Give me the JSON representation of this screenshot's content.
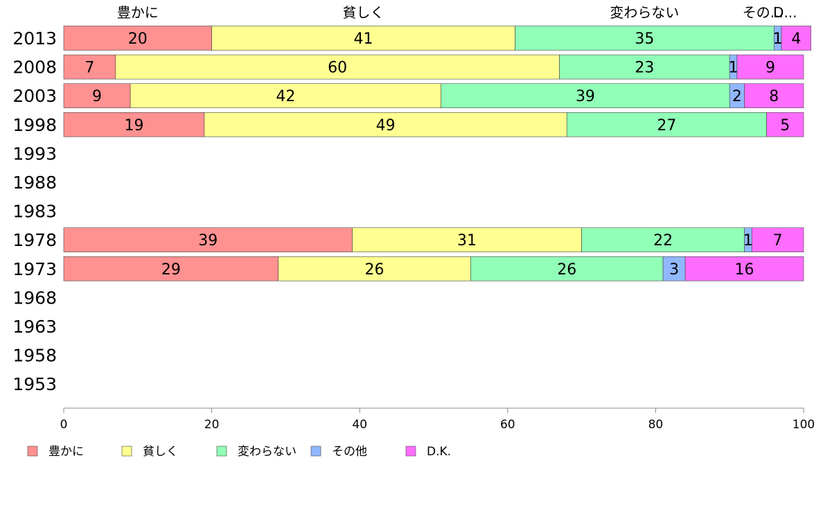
{
  "chart_data": {
    "type": "bar",
    "orientation": "horizontal",
    "stacked": true,
    "categories": [
      "2013",
      "2008",
      "2003",
      "1998",
      "1993",
      "1988",
      "1983",
      "1978",
      "1973",
      "1968",
      "1963",
      "1958",
      "1953"
    ],
    "series": [
      {
        "name": "豊かに",
        "color": "#ff9191",
        "values": [
          20,
          7,
          9,
          19,
          null,
          null,
          null,
          39,
          29,
          null,
          null,
          null,
          null
        ]
      },
      {
        "name": "貧しく",
        "color": "#ffff91",
        "values": [
          41,
          60,
          42,
          49,
          null,
          null,
          null,
          31,
          26,
          null,
          null,
          null,
          null
        ]
      },
      {
        "name": "変わらない",
        "color": "#91ffb7",
        "values": [
          35,
          23,
          39,
          27,
          null,
          null,
          null,
          22,
          26,
          null,
          null,
          null,
          null
        ]
      },
      {
        "name": "その他",
        "color": "#91b7ff",
        "values": [
          1,
          1,
          2,
          0,
          null,
          null,
          null,
          1,
          3,
          null,
          null,
          null,
          null
        ]
      },
      {
        "name": "D.K.",
        "color": "#ff6dff",
        "values": [
          4,
          9,
          8,
          5,
          null,
          null,
          null,
          7,
          16,
          null,
          null,
          null,
          null
        ]
      }
    ],
    "top_labels": [
      "豊かに",
      "貧しく",
      "変わらない",
      "その...",
      "D..."
    ],
    "xlim": [
      0,
      100
    ],
    "xticks": [
      "0",
      "20",
      "40",
      "60",
      "80",
      "100"
    ],
    "legend": "bottom-left",
    "grid": false
  }
}
